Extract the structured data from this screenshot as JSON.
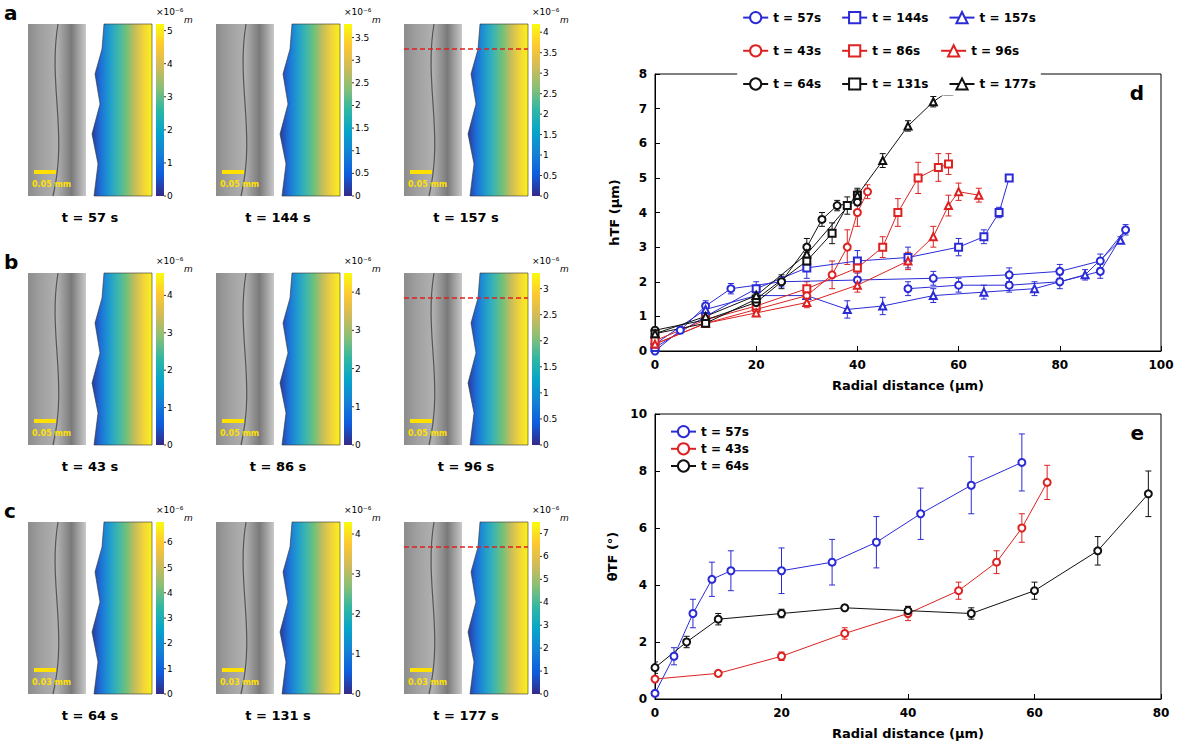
{
  "image_panels": [
    {
      "letter": "a",
      "images": [
        {
          "time": "t = 57 s",
          "scale_bar": "0.05 mm",
          "colorbar": {
            "range": [
              0,
              5.2
            ],
            "ticks": [
              0,
              1,
              2,
              3,
              4,
              5
            ],
            "exponent": "×10⁻⁶",
            "unit": "m"
          }
        },
        {
          "time": "t = 144 s",
          "scale_bar": "0.05 mm",
          "colorbar": {
            "range": [
              0,
              3.8
            ],
            "ticks": [
              0,
              0.5,
              1,
              1.5,
              2,
              2.5,
              3,
              3.5
            ],
            "exponent": "×10⁻⁶",
            "unit": "m"
          }
        },
        {
          "time": "t = 157 s",
          "scale_bar": "0.05 mm",
          "colorbar": {
            "range": [
              0,
              4.2
            ],
            "ticks": [
              0,
              0.5,
              1,
              1.5,
              2,
              2.5,
              3,
              3.5,
              4
            ],
            "exponent": "×10⁻⁶",
            "unit": "m"
          }
        }
      ]
    },
    {
      "letter": "b",
      "images": [
        {
          "time": "t = 43 s",
          "scale_bar": "0.05 mm",
          "colorbar": {
            "range": [
              0,
              4.6
            ],
            "ticks": [
              0,
              1,
              2,
              3,
              4
            ],
            "exponent": "×10⁻⁶",
            "unit": "m"
          }
        },
        {
          "time": "t = 86 s",
          "scale_bar": "0.05 mm",
          "colorbar": {
            "range": [
              0,
              4.5
            ],
            "ticks": [
              0,
              1,
              2,
              3,
              4
            ],
            "exponent": "×10⁻⁶",
            "unit": "m"
          }
        },
        {
          "time": "t = 96 s",
          "scale_bar": "0.05 mm",
          "colorbar": {
            "range": [
              0,
              3.3
            ],
            "ticks": [
              0,
              0.5,
              1,
              1.5,
              2,
              2.5,
              3
            ],
            "exponent": "×10⁻⁶",
            "unit": "m"
          }
        }
      ]
    },
    {
      "letter": "c",
      "images": [
        {
          "time": "t = 64 s",
          "scale_bar": "0.03 mm",
          "colorbar": {
            "range": [
              0,
              6.8
            ],
            "ticks": [
              0,
              1,
              2,
              3,
              4,
              5,
              6
            ],
            "exponent": "×10⁻⁶",
            "unit": "m"
          }
        },
        {
          "time": "t = 131 s",
          "scale_bar": "0.03 mm",
          "colorbar": {
            "range": [
              0,
              4.3
            ],
            "ticks": [
              0,
              1,
              2,
              3,
              4
            ],
            "exponent": "×10⁻⁶",
            "unit": "m"
          }
        },
        {
          "time": "t = 177 s",
          "scale_bar": "0.03 mm",
          "colorbar": {
            "range": [
              0,
              7.5
            ],
            "ticks": [
              0,
              1,
              2,
              3,
              4,
              5,
              6,
              7
            ],
            "exponent": "×10⁻⁶",
            "unit": "m"
          }
        }
      ]
    }
  ],
  "chart_data": [
    {
      "type": "line",
      "title": "d",
      "x_label": "Radial distance (µm)",
      "y_label": "hTF (µm)",
      "xlim": [
        0,
        100
      ],
      "xticks": [
        0,
        20,
        40,
        60,
        80,
        100
      ],
      "ylim": [
        0,
        8
      ],
      "yticks": [
        0,
        1,
        2,
        3,
        4,
        5,
        6,
        7,
        8
      ],
      "grid": false,
      "legend": "top",
      "series": [
        {
          "name": "t = 57s",
          "color": "#2b2bd6",
          "marker": "circle",
          "x": [
            0,
            5,
            10,
            15,
            25,
            40,
            55,
            70,
            80,
            88,
            93,
            88,
            80,
            70,
            60,
            50
          ],
          "values": [
            0,
            0.6,
            1.3,
            1.8,
            2.0,
            2.05,
            2.1,
            2.2,
            2.3,
            2.6,
            3.5,
            2.3,
            2.0,
            1.9,
            1.9,
            1.8
          ],
          "errors": [
            0.05,
            0.1,
            0.15,
            0.15,
            0.15,
            0.2,
            0.2,
            0.2,
            0.2,
            0.2,
            0.15,
            0.2,
            0.2,
            0.2,
            0.2,
            0.2
          ]
        },
        {
          "name": "t = 144s",
          "color": "#2b2bd6",
          "marker": "square",
          "x": [
            0,
            10,
            20,
            30,
            40,
            50,
            60,
            65,
            68,
            70
          ],
          "values": [
            0.1,
            1.0,
            1.8,
            2.4,
            2.6,
            2.7,
            3.0,
            3.3,
            4.0,
            5.0
          ],
          "errors": [
            0.05,
            0.15,
            0.2,
            0.3,
            0.3,
            0.3,
            0.25,
            0.2,
            0.15,
            0.1
          ]
        },
        {
          "name": "t = 157s",
          "color": "#2b2bd6",
          "marker": "triangle",
          "x": [
            0,
            10,
            20,
            30,
            38,
            45,
            55,
            65,
            75,
            85,
            92
          ],
          "values": [
            0.2,
            1.2,
            1.6,
            1.6,
            1.2,
            1.3,
            1.6,
            1.7,
            1.8,
            2.2,
            3.2
          ],
          "errors": [
            0.05,
            0.15,
            0.2,
            0.2,
            0.25,
            0.25,
            0.2,
            0.2,
            0.2,
            0.15,
            0.1
          ]
        },
        {
          "name": "t = 43s",
          "color": "#dd2222",
          "marker": "circle",
          "x": [
            0,
            10,
            20,
            30,
            35,
            38,
            40,
            42
          ],
          "values": [
            0.2,
            0.8,
            1.2,
            1.6,
            2.2,
            3.0,
            4.0,
            4.6
          ],
          "errors": [
            0.05,
            0.1,
            0.15,
            0.2,
            0.4,
            0.5,
            0.4,
            0.2
          ]
        },
        {
          "name": "t = 86s",
          "color": "#dd2222",
          "marker": "square",
          "x": [
            0,
            10,
            20,
            30,
            40,
            45,
            48,
            52,
            56,
            58
          ],
          "values": [
            0.3,
            0.9,
            1.3,
            1.8,
            2.4,
            3.0,
            4.0,
            5.0,
            5.3,
            5.4
          ],
          "errors": [
            0.05,
            0.1,
            0.15,
            0.2,
            0.25,
            0.3,
            0.4,
            0.45,
            0.4,
            0.3
          ]
        },
        {
          "name": "t = 96s",
          "color": "#dd2222",
          "marker": "triangle",
          "x": [
            0,
            10,
            20,
            30,
            40,
            50,
            55,
            58,
            60,
            64
          ],
          "values": [
            0.2,
            0.8,
            1.1,
            1.4,
            1.9,
            2.6,
            3.3,
            4.2,
            4.6,
            4.5
          ],
          "errors": [
            0.05,
            0.1,
            0.1,
            0.15,
            0.2,
            0.25,
            0.3,
            0.3,
            0.25,
            0.2
          ]
        },
        {
          "name": "t = 64s",
          "color": "#111111",
          "marker": "circle",
          "x": [
            0,
            10,
            20,
            25,
            30,
            33,
            36,
            40
          ],
          "values": [
            0.6,
            0.9,
            1.4,
            2.0,
            3.0,
            3.8,
            4.2,
            4.3
          ],
          "errors": [
            0.05,
            0.1,
            0.15,
            0.2,
            0.25,
            0.2,
            0.15,
            0.1
          ]
        },
        {
          "name": "t = 131s",
          "color": "#111111",
          "marker": "square",
          "x": [
            0,
            10,
            20,
            30,
            35,
            38,
            40
          ],
          "values": [
            0.5,
            0.8,
            1.5,
            2.6,
            3.4,
            4.2,
            4.5
          ],
          "errors": [
            0.05,
            0.1,
            0.15,
            0.25,
            0.3,
            0.25,
            0.15
          ]
        },
        {
          "name": "t = 177s",
          "color": "#111111",
          "marker": "triangle",
          "x": [
            0,
            10,
            20,
            30,
            40,
            45,
            50,
            55,
            58
          ],
          "values": [
            0.5,
            1.0,
            1.6,
            2.8,
            4.5,
            5.5,
            6.5,
            7.2,
            7.5
          ],
          "errors": [
            0.05,
            0.1,
            0.15,
            0.2,
            0.2,
            0.2,
            0.15,
            0.15,
            0.1
          ]
        }
      ]
    },
    {
      "type": "line",
      "title": "e",
      "x_label": "Radial distance (µm)",
      "y_label": "θTF (°)",
      "xlim": [
        0,
        80
      ],
      "xticks": [
        0,
        20,
        40,
        60,
        80
      ],
      "ylim": [
        0,
        10
      ],
      "yticks": [
        0,
        2,
        4,
        6,
        8,
        10
      ],
      "grid": false,
      "legend": "upper left",
      "series": [
        {
          "name": "t = 57s",
          "color": "#2b2bd6",
          "marker": "circle",
          "x": [
            0,
            3,
            6,
            9,
            12,
            20,
            28,
            35,
            42,
            50,
            58
          ],
          "values": [
            0.2,
            1.5,
            3.0,
            4.2,
            4.5,
            4.5,
            4.8,
            5.5,
            6.5,
            7.5,
            8.3
          ],
          "errors": [
            0.1,
            0.3,
            0.5,
            0.6,
            0.7,
            0.8,
            0.8,
            0.9,
            0.9,
            1.0,
            1.0
          ]
        },
        {
          "name": "t = 43s",
          "color": "#dd2222",
          "marker": "circle",
          "x": [
            0,
            10,
            20,
            30,
            40,
            48,
            54,
            58,
            62
          ],
          "values": [
            0.7,
            0.9,
            1.5,
            2.3,
            3.0,
            3.8,
            4.8,
            6.0,
            7.6
          ],
          "errors": [
            0.1,
            0.1,
            0.15,
            0.2,
            0.25,
            0.3,
            0.4,
            0.5,
            0.6
          ]
        },
        {
          "name": "t = 64s",
          "color": "#111111",
          "marker": "circle",
          "x": [
            0,
            5,
            10,
            20,
            30,
            40,
            50,
            60,
            70,
            78
          ],
          "values": [
            1.1,
            2.0,
            2.8,
            3.0,
            3.2,
            3.1,
            3.0,
            3.8,
            5.2,
            7.2
          ],
          "errors": [
            0.2,
            0.2,
            0.2,
            0.15,
            0.1,
            0.15,
            0.2,
            0.3,
            0.5,
            0.8
          ]
        }
      ]
    }
  ]
}
